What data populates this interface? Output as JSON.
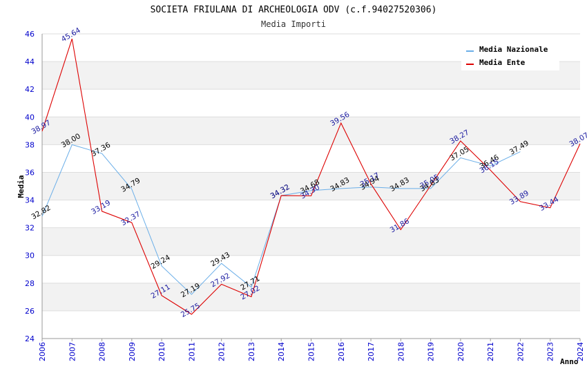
{
  "chart_data": {
    "type": "line",
    "title": "SOCIETA FRIULANA DI ARCHEOLOGIA ODV (c.f.94027520306)",
    "subtitle": "Media Importi",
    "xlabel": "Anno",
    "ylabel": "Media",
    "ylim": [
      24,
      46
    ],
    "yticks": [
      "24",
      "26",
      "28",
      "30",
      "32",
      "34",
      "36",
      "38",
      "40",
      "42",
      "44",
      "46"
    ],
    "categories": [
      "2006",
      "2007",
      "2008",
      "2009",
      "2010",
      "2011",
      "2012",
      "2013",
      "2014",
      "2015",
      "2016",
      "2017",
      "2018",
      "2019",
      "2020",
      "2021",
      "2022",
      "2023",
      "2024"
    ],
    "legend_position": "top-right",
    "series": [
      {
        "name": "Media Nazionale",
        "color": "#6aaee8",
        "label_color": "#000000",
        "values": [
          32.82,
          38.0,
          37.36,
          34.79,
          29.24,
          27.19,
          29.43,
          27.71,
          34.32,
          34.68,
          34.83,
          34.94,
          34.83,
          34.83,
          37.05,
          36.46,
          37.49,
          null,
          null
        ],
        "labels": [
          "32.82",
          "38.00",
          "37.36",
          "34.79",
          "29.24",
          "27.19",
          "29.43",
          "27.71",
          "34.32",
          "34.68",
          "34.83",
          "34.94",
          "34.83",
          "34.83",
          "37.05",
          "36.46",
          "37.49",
          null,
          null
        ]
      },
      {
        "name": "Media Ente",
        "color": "#dd0000",
        "label_color": "#1a1aa0",
        "values": [
          38.97,
          45.64,
          33.19,
          32.37,
          27.11,
          25.75,
          27.92,
          27.02,
          34.32,
          34.3,
          39.56,
          35.17,
          31.86,
          35.05,
          38.27,
          36.15,
          33.89,
          33.44,
          38.07
        ],
        "labels": [
          "38.97",
          "45.64",
          "33.19",
          "32.37",
          "27.11",
          "25.75",
          "27.92",
          "27.02",
          "34.32",
          "34.30",
          "39.56",
          "35.17",
          "31.86",
          "35.05",
          "38.27",
          "36.15",
          "33.89",
          "33.44",
          "38.07"
        ]
      }
    ]
  }
}
